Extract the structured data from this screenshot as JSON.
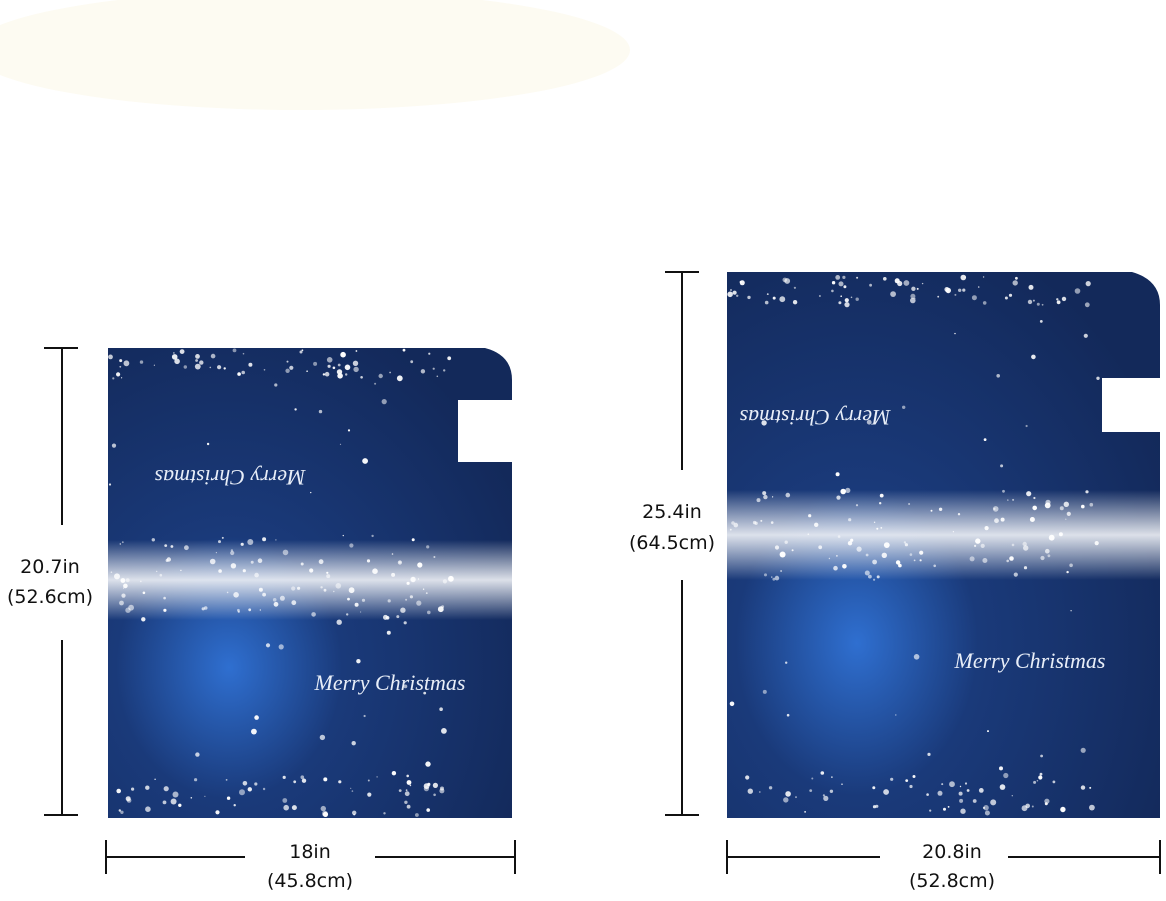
{
  "panels": [
    {
      "height": {
        "in": "20.7in",
        "cm": "(52.6cm)"
      },
      "width": {
        "in": "18in",
        "cm": "(45.8cm)"
      },
      "greetings": [
        "Merry Christmas",
        "Merry Christmas"
      ]
    },
    {
      "height": {
        "in": "25.4in",
        "cm": "(64.5cm)"
      },
      "width": {
        "in": "20.8in",
        "cm": "(52.8cm)"
      },
      "greetings": [
        "Merry Christmas",
        "Merry Christmas"
      ]
    }
  ]
}
